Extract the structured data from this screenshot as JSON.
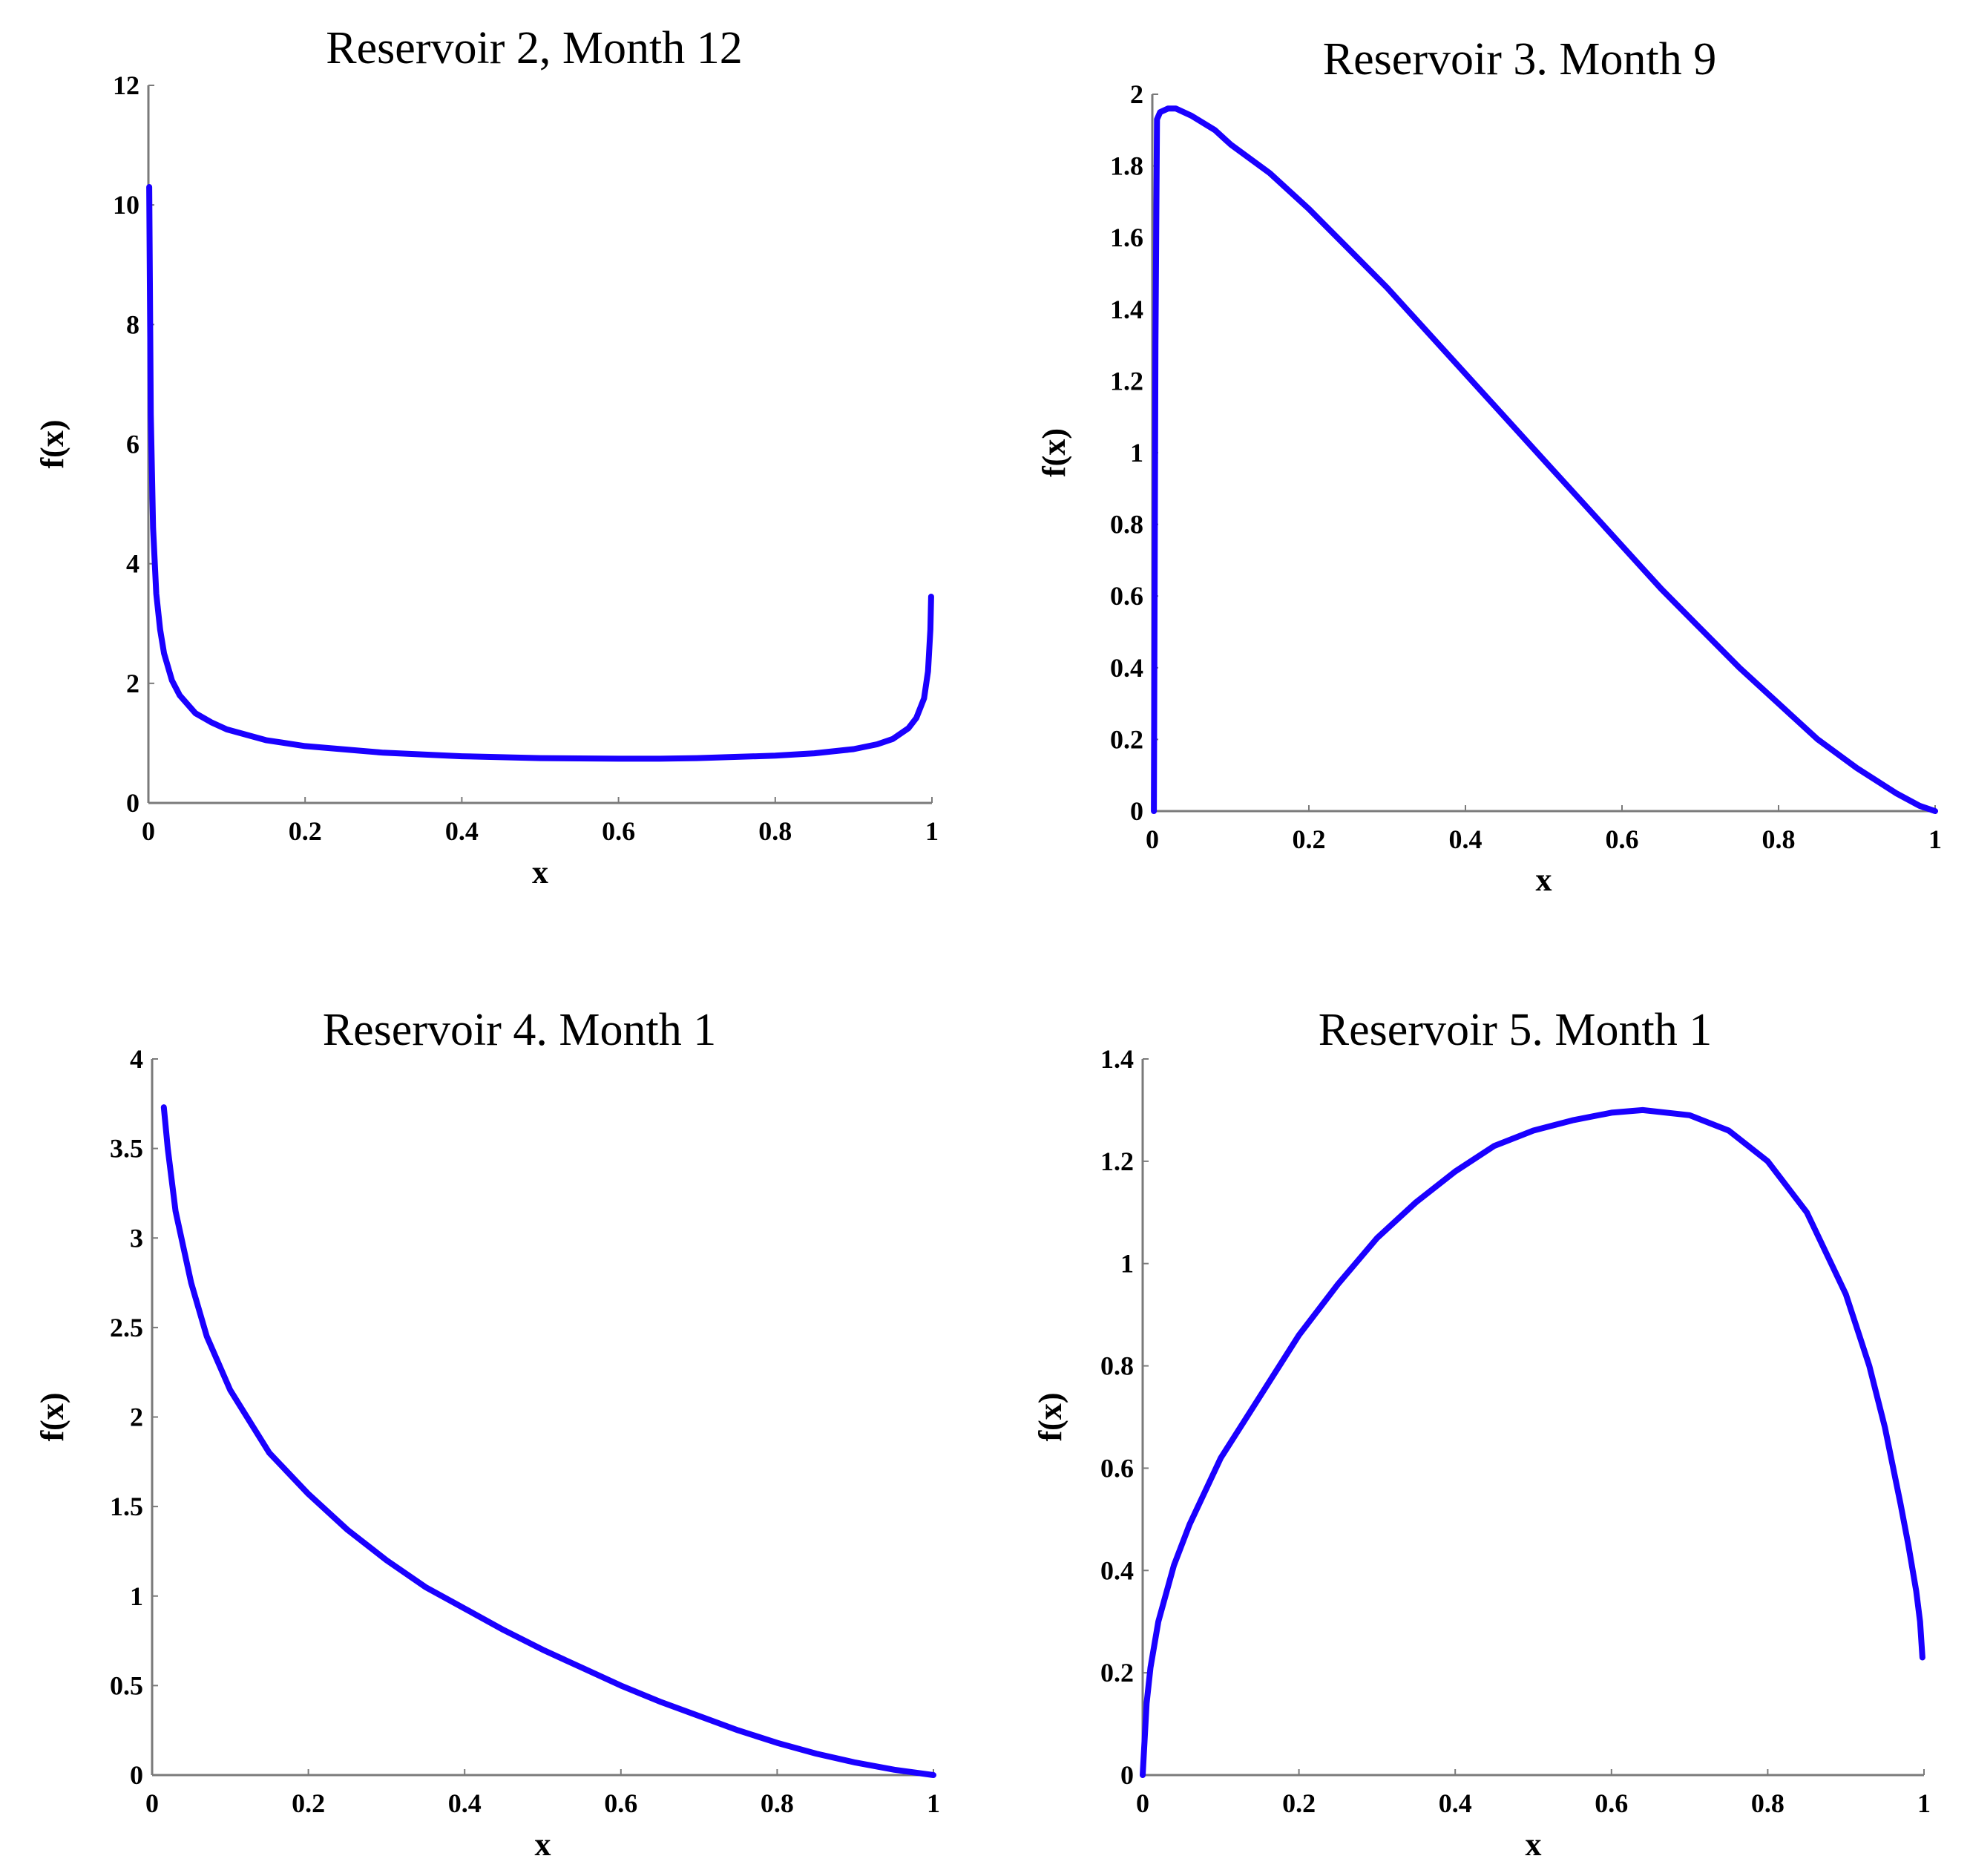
{
  "chart_data": [
    {
      "type": "line",
      "title": "Reservoir 2, Month 12",
      "xlabel": "x",
      "ylabel": "f(x)",
      "xlim": [
        0,
        1
      ],
      "ylim": [
        0,
        12
      ],
      "xticks": [
        "0",
        "0.2",
        "0.4",
        "0.6",
        "0.8",
        "1"
      ],
      "yticks": [
        "0",
        "2",
        "4",
        "6",
        "8",
        "10",
        "12"
      ],
      "color": "#1a00ff",
      "series": [
        {
          "x": [
            0.001,
            0.003,
            0.006,
            0.01,
            0.015,
            0.02,
            0.03,
            0.04,
            0.06,
            0.08,
            0.1,
            0.15,
            0.2,
            0.3,
            0.4,
            0.5,
            0.6,
            0.65,
            0.7,
            0.8,
            0.85,
            0.9,
            0.93,
            0.95,
            0.97,
            0.98,
            0.99,
            0.995,
            0.998,
            0.999
          ],
          "y": [
            10.3,
            6.5,
            4.6,
            3.5,
            2.9,
            2.5,
            2.05,
            1.8,
            1.5,
            1.35,
            1.23,
            1.05,
            0.95,
            0.84,
            0.78,
            0.75,
            0.74,
            0.74,
            0.75,
            0.79,
            0.83,
            0.9,
            0.98,
            1.07,
            1.25,
            1.42,
            1.75,
            2.2,
            2.9,
            3.45
          ]
        }
      ]
    },
    {
      "type": "line",
      "title": "Reservoir 3. Month 9",
      "xlabel": "x",
      "ylabel": "f(x)",
      "xlim": [
        0,
        1
      ],
      "ylim": [
        0,
        2
      ],
      "xticks": [
        "0",
        "0.2",
        "0.4",
        "0.6",
        "0.8",
        "1"
      ],
      "yticks": [
        "0",
        "0.2",
        "0.4",
        "0.6",
        "0.8",
        "1",
        "1.2",
        "1.4",
        "1.6",
        "1.8",
        "2"
      ],
      "color": "#1a00ff",
      "series": [
        {
          "x": [
            0.002,
            0.004,
            0.006,
            0.01,
            0.02,
            0.03,
            0.05,
            0.08,
            0.1,
            0.15,
            0.2,
            0.25,
            0.3,
            0.35,
            0.4,
            0.45,
            0.5,
            0.55,
            0.6,
            0.65,
            0.7,
            0.75,
            0.8,
            0.85,
            0.9,
            0.95,
            0.98,
            1.0
          ],
          "y": [
            0.0,
            1.3,
            1.93,
            1.95,
            1.96,
            1.96,
            1.94,
            1.9,
            1.86,
            1.78,
            1.68,
            1.57,
            1.46,
            1.34,
            1.22,
            1.1,
            0.98,
            0.86,
            0.74,
            0.62,
            0.51,
            0.4,
            0.3,
            0.2,
            0.12,
            0.05,
            0.015,
            0.0
          ]
        }
      ]
    },
    {
      "type": "line",
      "title": "Reservoir 4. Month 1",
      "xlabel": "x",
      "ylabel": "f(x)",
      "xlim": [
        0,
        1
      ],
      "ylim": [
        0,
        4
      ],
      "xticks": [
        "0",
        "0.2",
        "0.4",
        "0.6",
        "0.8",
        "1"
      ],
      "yticks": [
        "0",
        "0.5",
        "1",
        "1.5",
        "2",
        "2.5",
        "3",
        "3.5",
        "4"
      ],
      "color": "#1a00ff",
      "series": [
        {
          "x": [
            0.015,
            0.02,
            0.03,
            0.05,
            0.07,
            0.1,
            0.15,
            0.2,
            0.25,
            0.3,
            0.35,
            0.4,
            0.45,
            0.5,
            0.55,
            0.6,
            0.65,
            0.7,
            0.75,
            0.8,
            0.85,
            0.9,
            0.95,
            1.0
          ],
          "y": [
            3.73,
            3.5,
            3.15,
            2.75,
            2.45,
            2.15,
            1.8,
            1.57,
            1.37,
            1.2,
            1.05,
            0.93,
            0.81,
            0.7,
            0.6,
            0.5,
            0.41,
            0.33,
            0.25,
            0.18,
            0.12,
            0.07,
            0.03,
            0.0
          ]
        }
      ]
    },
    {
      "type": "line",
      "title": "Reservoir 5. Month 1",
      "xlabel": "x",
      "ylabel": "f(x)",
      "xlim": [
        0,
        1
      ],
      "ylim": [
        0,
        1.4
      ],
      "xticks": [
        "0",
        "0.2",
        "0.4",
        "0.6",
        "0.8",
        "1"
      ],
      "yticks": [
        "0",
        "0.2",
        "0.4",
        "0.6",
        "0.8",
        "1",
        "1.2",
        "1.4"
      ],
      "color": "#1a00ff",
      "series": [
        {
          "x": [
            0.0,
            0.005,
            0.01,
            0.02,
            0.04,
            0.06,
            0.1,
            0.15,
            0.2,
            0.25,
            0.3,
            0.35,
            0.4,
            0.45,
            0.5,
            0.55,
            0.6,
            0.64,
            0.7,
            0.75,
            0.8,
            0.85,
            0.9,
            0.93,
            0.95,
            0.97,
            0.98,
            0.99,
            0.995,
            0.998
          ],
          "y": [
            0.0,
            0.14,
            0.21,
            0.3,
            0.41,
            0.49,
            0.62,
            0.74,
            0.86,
            0.96,
            1.05,
            1.12,
            1.18,
            1.23,
            1.26,
            1.28,
            1.295,
            1.3,
            1.29,
            1.26,
            1.2,
            1.1,
            0.94,
            0.8,
            0.68,
            0.53,
            0.45,
            0.36,
            0.3,
            0.23
          ]
        }
      ]
    }
  ]
}
